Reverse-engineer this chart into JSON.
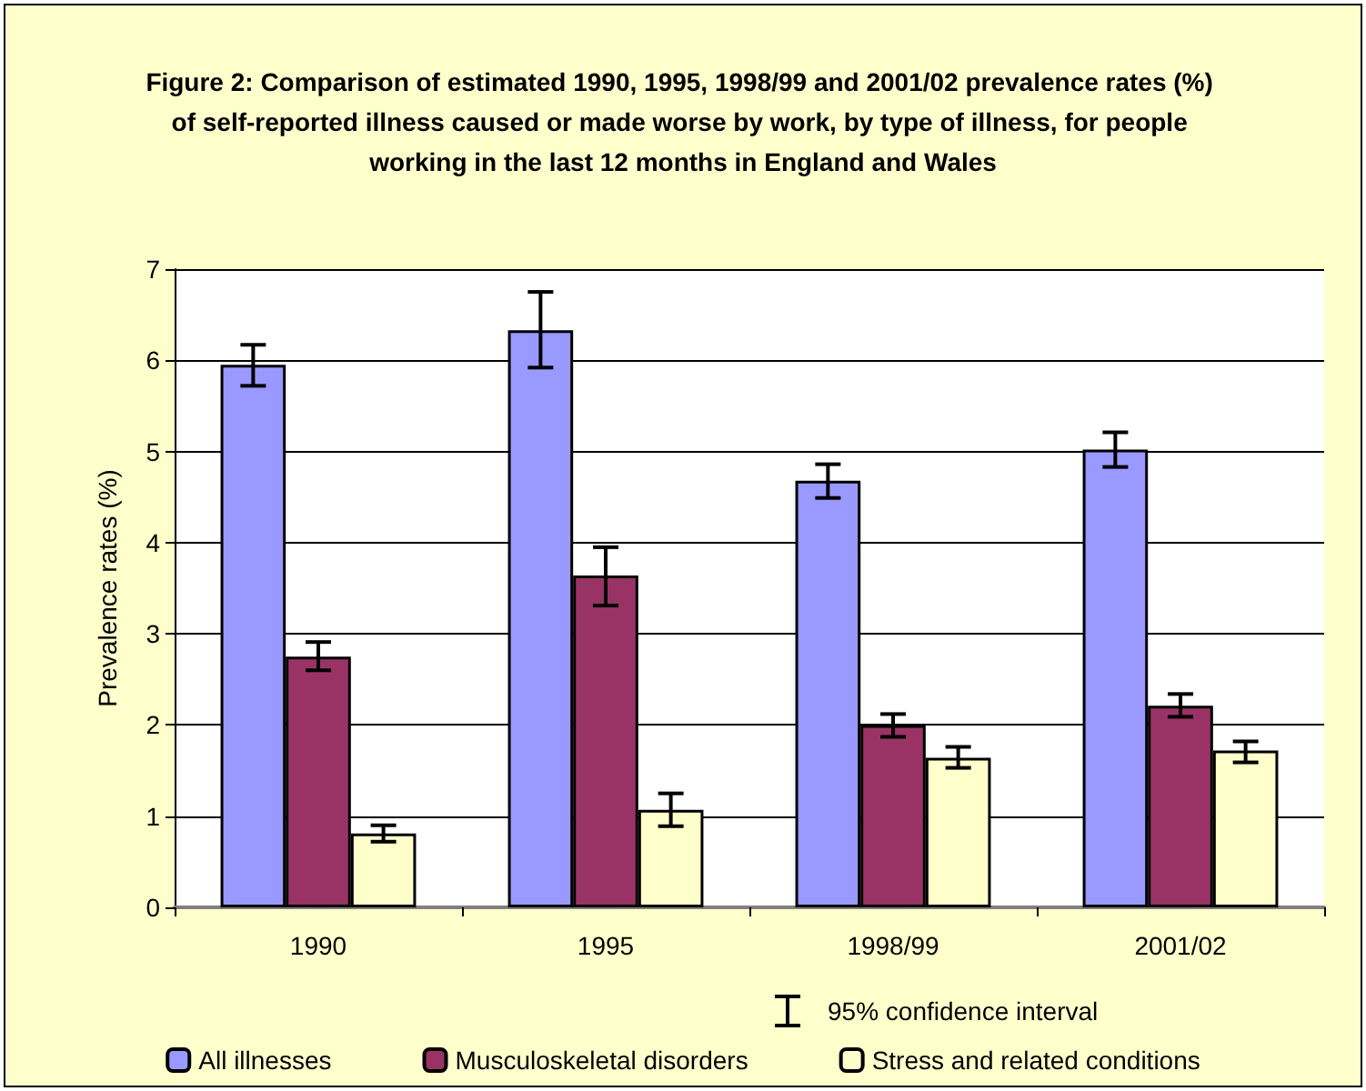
{
  "chart_data": {
    "type": "bar",
    "title": "Figure 2: Comparison of estimated 1990, 1995, 1998/99 and 2001/02 prevalence rates (%) of self-reported illness caused or made worse by work, by type of illness, for people working in the last 12 months in England and Wales",
    "ylabel": "Prevalence rates (%)",
    "categories": [
      "1990",
      "1995",
      "1998/99",
      "2001/02"
    ],
    "series": [
      {
        "name": "All illnesses",
        "color": "#9999ff",
        "values": [
          5.95,
          6.33,
          4.68,
          5.02
        ],
        "errors": [
          [
            5.72,
            6.17
          ],
          [
            5.92,
            6.75
          ],
          [
            4.49,
            4.86
          ],
          [
            4.83,
            5.21
          ]
        ]
      },
      {
        "name": "Musculoskeletal disorders",
        "color": "#993366",
        "values": [
          2.75,
          3.64,
          2.0,
          2.21
        ],
        "errors": [
          [
            2.6,
            2.91
          ],
          [
            3.31,
            3.95
          ],
          [
            1.87,
            2.12
          ],
          [
            2.09,
            2.34
          ]
        ]
      },
      {
        "name": "Stress and related conditions",
        "color": "#ffffcc",
        "values": [
          0.81,
          1.07,
          1.64,
          1.72
        ],
        "errors": [
          [
            0.72,
            0.9
          ],
          [
            0.89,
            1.25
          ],
          [
            1.53,
            1.76
          ],
          [
            1.59,
            1.82
          ]
        ]
      }
    ],
    "annotations": [
      "95% confidence interval"
    ],
    "ylim": [
      0,
      7
    ],
    "yticks": [
      0,
      1,
      2,
      3,
      4,
      5,
      6,
      7
    ],
    "grid": "y",
    "legend": "bottom"
  }
}
